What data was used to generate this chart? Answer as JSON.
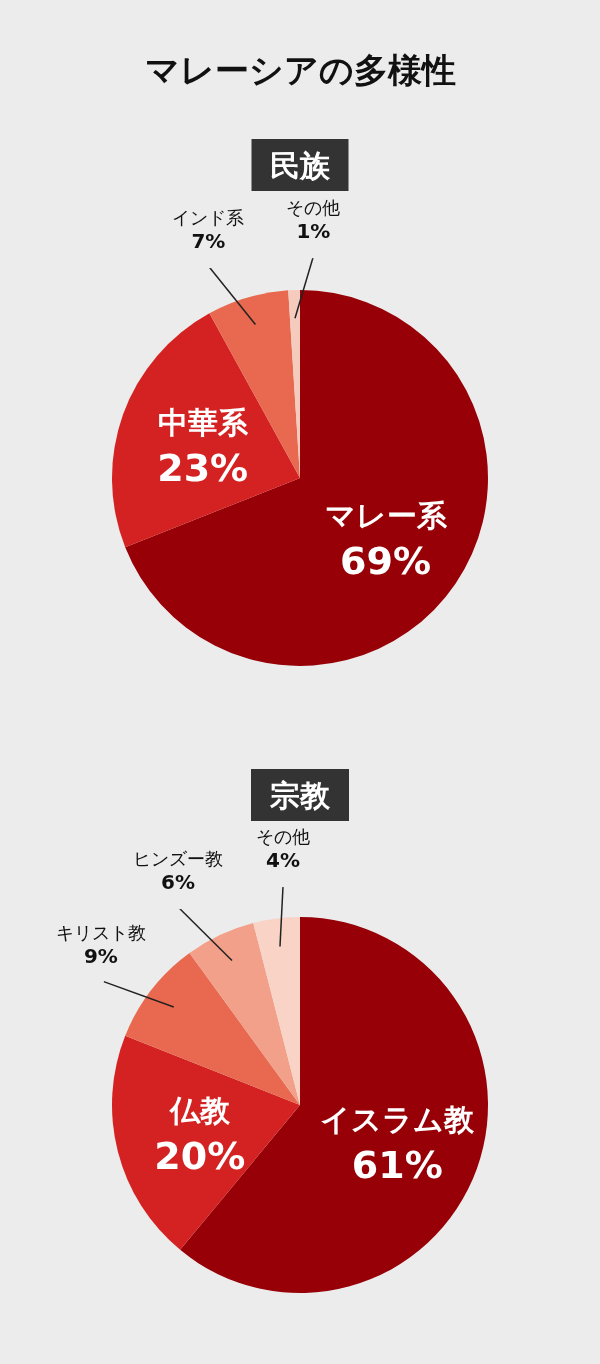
{
  "chart_data": [
    {
      "type": "pie",
      "title": "マレーシアの多様性",
      "subtitle": "民族",
      "categories": [
        "マレー系",
        "中華系",
        "インド系",
        "その他"
      ],
      "values": [
        69,
        23,
        7,
        1
      ],
      "value_labels": [
        "69%",
        "23%",
        "7%",
        "1%"
      ],
      "colors": [
        "#960006",
        "#d42222",
        "#e8694f",
        "#f5cbbd"
      ]
    },
    {
      "type": "pie",
      "subtitle": "宗教",
      "categories": [
        "イスラム教",
        "仏教",
        "キリスト教",
        "ヒンズー教",
        "その他"
      ],
      "values": [
        61,
        20,
        9,
        6,
        4
      ],
      "value_labels": [
        "61%",
        "20%",
        "9%",
        "6%",
        "4%"
      ],
      "colors": [
        "#960006",
        "#d42222",
        "#e8694f",
        "#f2a08a",
        "#f8d3c6"
      ]
    }
  ]
}
